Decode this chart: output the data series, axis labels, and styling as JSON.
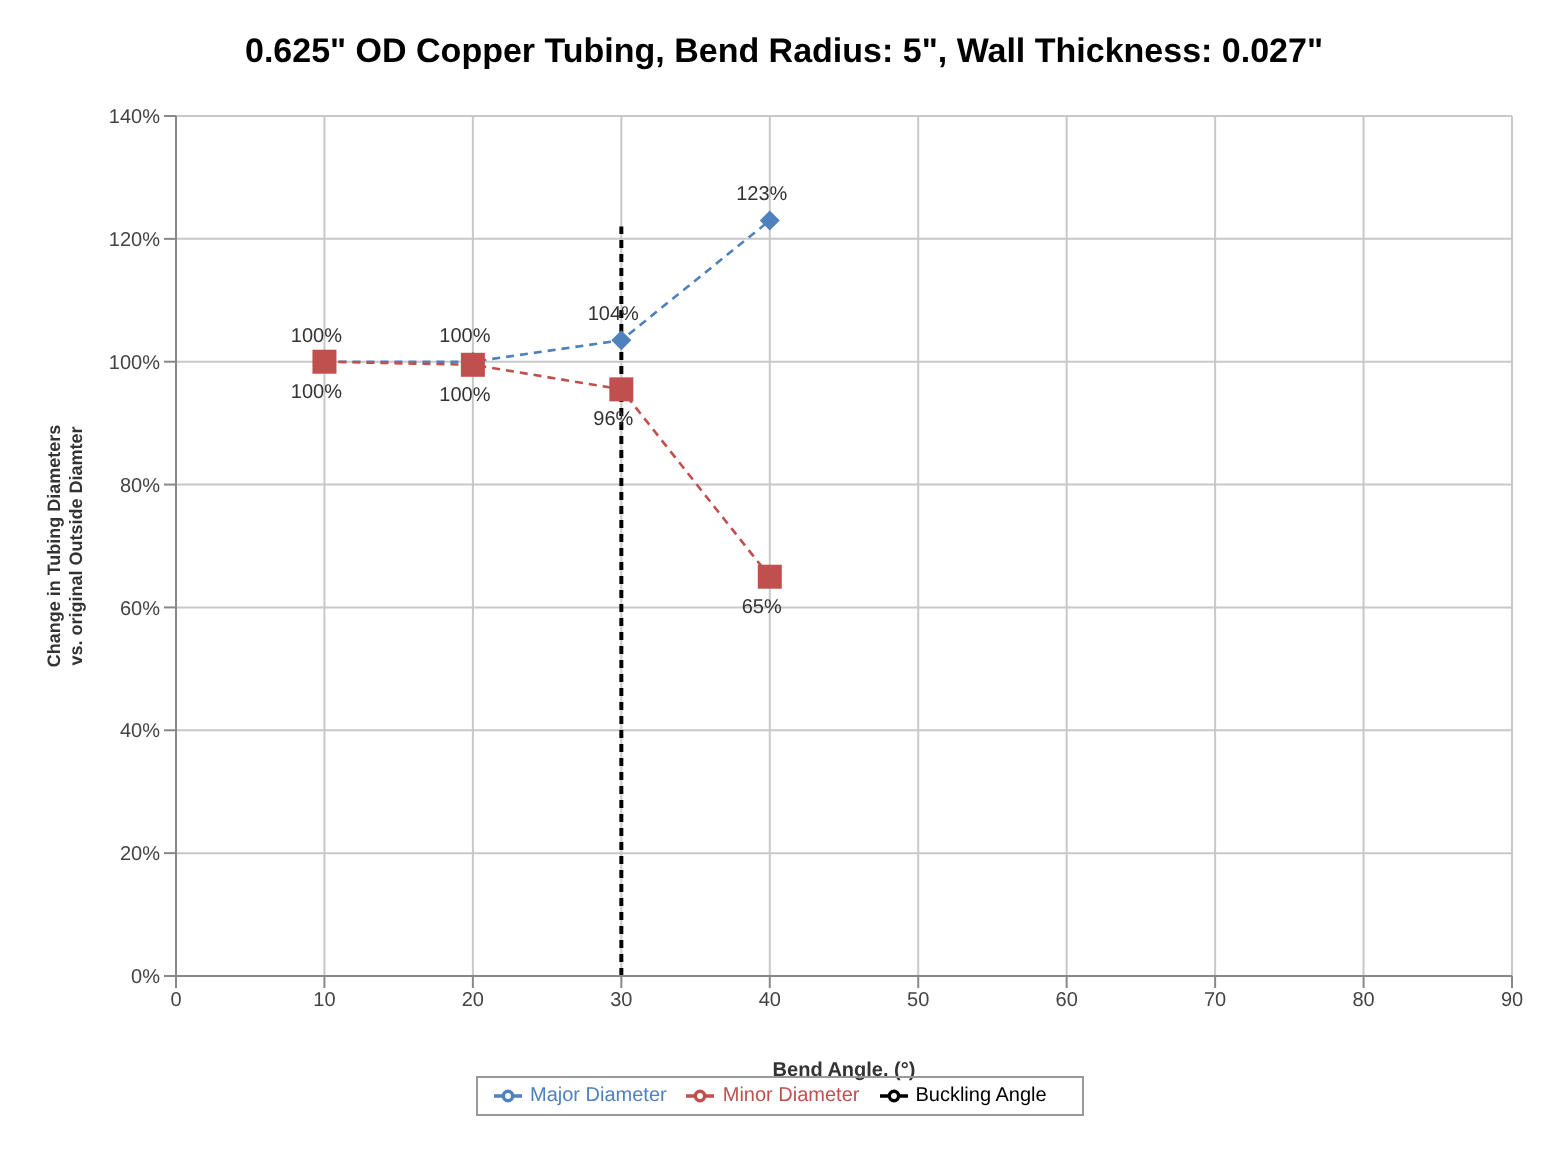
{
  "chart_data": {
    "type": "line",
    "title": "0.625\" OD Copper Tubing, Bend Radius: 5\", Wall Thickness: 0.027\"",
    "xlabel": "Bend Angle. (°)",
    "ylabel": "Change in Tubing Diameters\nvs. original Outside Diamter",
    "x": [
      10,
      20,
      30,
      40
    ],
    "series": [
      {
        "name": "Major Diameter",
        "color": "#4f81bd",
        "values": [
          100,
          100,
          103.5,
          123
        ],
        "value_labels": [
          "100%",
          "100%",
          "104%",
          "123%"
        ],
        "marker": "diamond",
        "line_style": "dashed"
      },
      {
        "name": "Minor Diameter",
        "color": "#c0504d",
        "values": [
          100,
          99.5,
          95.5,
          65
        ],
        "value_labels": [
          "100%",
          "100%",
          "96%",
          "65%"
        ],
        "marker": "square",
        "line_style": "dashed"
      },
      {
        "name": "Buckling Angle",
        "color": "#000000",
        "x": [
          30,
          30
        ],
        "values": [
          0,
          122
        ],
        "marker": "none",
        "line_style": "dashed"
      }
    ],
    "xlim": [
      0,
      90
    ],
    "xticks": [
      0,
      10,
      20,
      30,
      40,
      50,
      60,
      70,
      80,
      90
    ],
    "ylim": [
      0,
      140
    ],
    "yticks": [
      {
        "value": 0,
        "label": "0%"
      },
      {
        "value": 20,
        "label": "20%"
      },
      {
        "value": 40,
        "label": "40%"
      },
      {
        "value": 60,
        "label": "60%"
      },
      {
        "value": 80,
        "label": "80%"
      },
      {
        "value": 100,
        "label": "100%"
      },
      {
        "value": 120,
        "label": "120%"
      },
      {
        "value": 140,
        "label": "140%"
      }
    ],
    "grid": true,
    "legend": "bottom"
  }
}
